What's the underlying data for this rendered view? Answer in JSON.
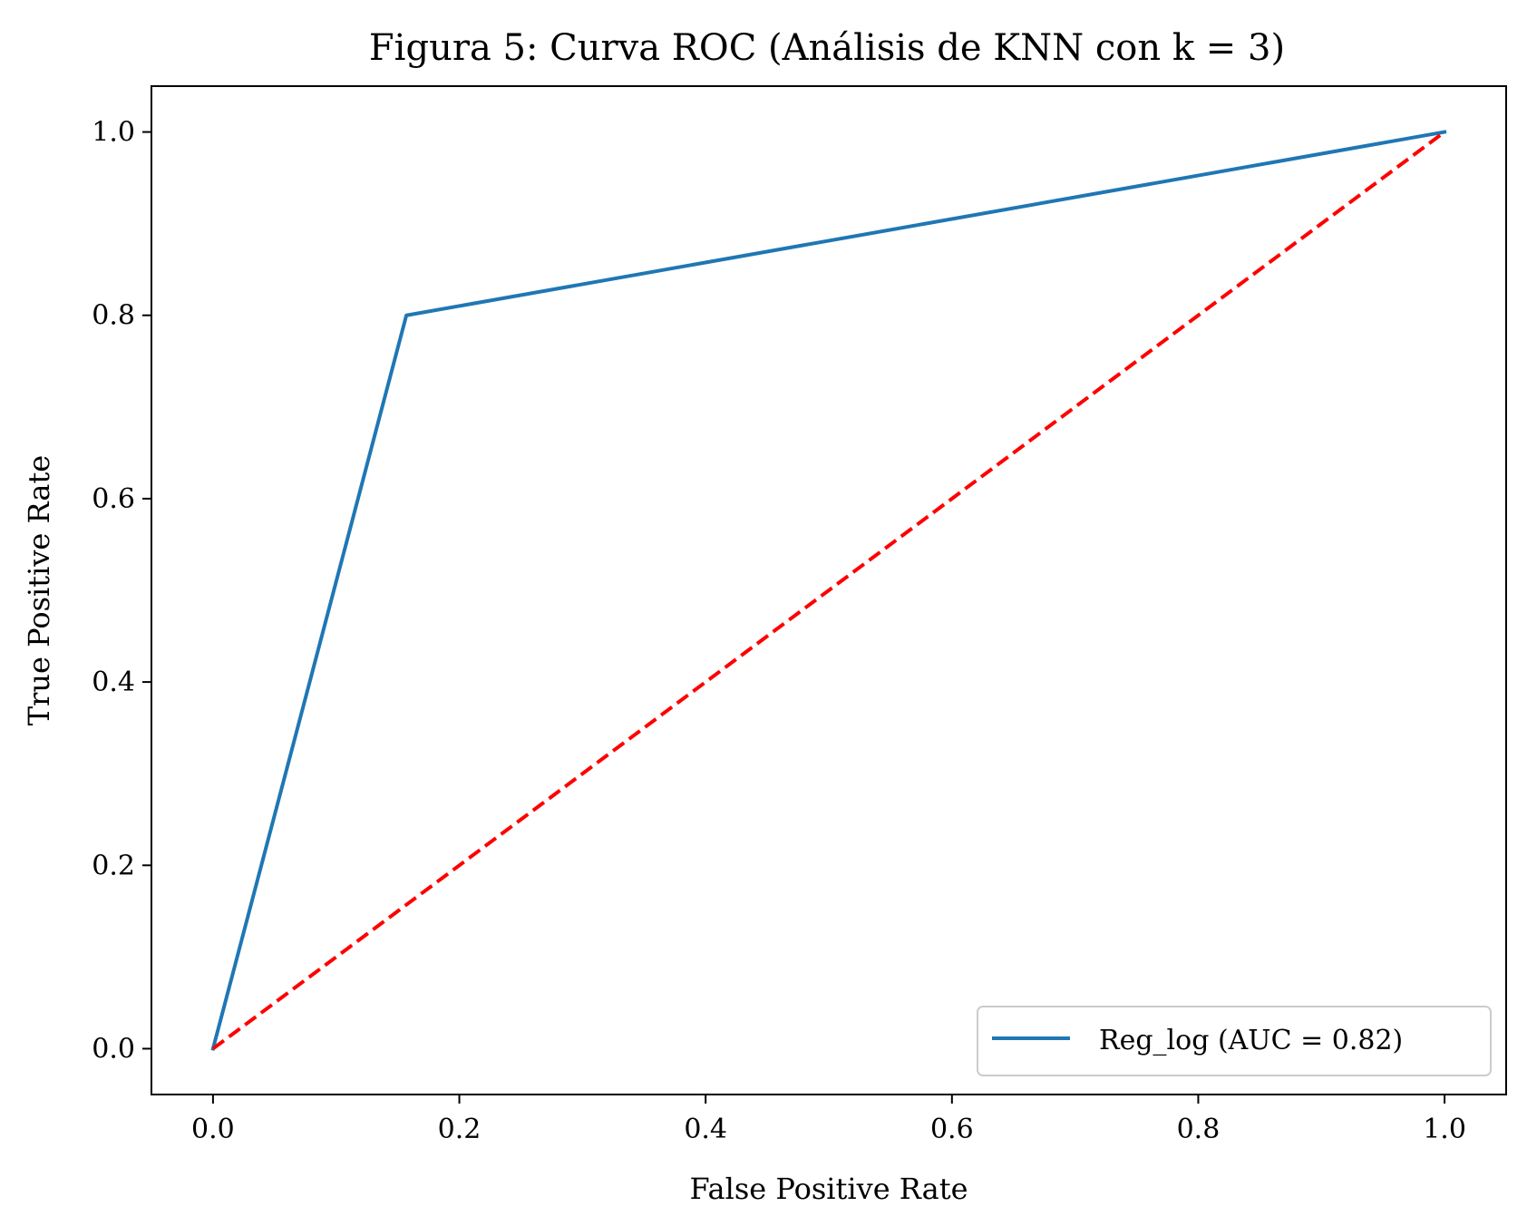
{
  "chart_data": {
    "type": "line",
    "title": "Figura 5: Curva ROC (Análisis de KNN con k = 3)",
    "xlabel": "False Positive Rate",
    "ylabel": "True Positive Rate",
    "xlim": [
      -0.05,
      1.05
    ],
    "ylim": [
      -0.05,
      1.05
    ],
    "xticks": [
      "0.0",
      "0.2",
      "0.4",
      "0.6",
      "0.8",
      "1.0"
    ],
    "yticks": [
      "0.0",
      "0.2",
      "0.4",
      "0.6",
      "0.8",
      "1.0"
    ],
    "xtick_values": [
      0,
      0.2,
      0.4,
      0.6,
      0.8,
      1.0
    ],
    "ytick_values": [
      0,
      0.2,
      0.4,
      0.6,
      0.8,
      1.0
    ],
    "grid": false,
    "legend_position": "lower-right",
    "series": [
      {
        "name": "Reg_log (AUC = 0.82)",
        "x": [
          0.0,
          0.157,
          1.0
        ],
        "y": [
          0.0,
          0.8,
          1.0
        ],
        "color": "#1f77b4",
        "style": "solid"
      }
    ],
    "reference_line": {
      "x": [
        0.0,
        1.0
      ],
      "y": [
        0.0,
        1.0
      ],
      "color": "#ff0000",
      "style": "dashed"
    }
  }
}
